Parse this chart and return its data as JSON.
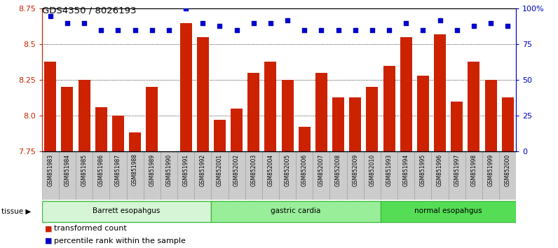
{
  "title": "GDS4350 / 8026193",
  "samples": [
    "GSM851983",
    "GSM851984",
    "GSM851985",
    "GSM851986",
    "GSM851987",
    "GSM851988",
    "GSM851989",
    "GSM851990",
    "GSM851991",
    "GSM851992",
    "GSM852001",
    "GSM852002",
    "GSM852003",
    "GSM852004",
    "GSM852005",
    "GSM852006",
    "GSM852007",
    "GSM852008",
    "GSM852009",
    "GSM852010",
    "GSM851993",
    "GSM851994",
    "GSM851995",
    "GSM851996",
    "GSM851997",
    "GSM851998",
    "GSM851999",
    "GSM852000"
  ],
  "bar_values": [
    8.38,
    8.2,
    8.25,
    8.06,
    8.0,
    7.88,
    8.2,
    7.75,
    8.65,
    8.55,
    7.97,
    8.05,
    8.3,
    8.38,
    8.25,
    7.92,
    8.3,
    8.13,
    8.13,
    8.2,
    8.35,
    8.55,
    8.28,
    8.57,
    8.1,
    8.38,
    8.25,
    8.13
  ],
  "percentile_values": [
    95,
    90,
    90,
    85,
    85,
    85,
    85,
    85,
    100,
    90,
    88,
    85,
    90,
    90,
    92,
    85,
    85,
    85,
    85,
    85,
    85,
    90,
    85,
    92,
    85,
    88,
    90,
    88
  ],
  "groups": [
    {
      "label": "Barrett esopahgus",
      "start": 0,
      "end": 9,
      "color": "#d6f5d6",
      "border": "#44bb44"
    },
    {
      "label": "gastric cardia",
      "start": 10,
      "end": 19,
      "color": "#99ee99",
      "border": "#44bb44"
    },
    {
      "label": "normal esopahgus",
      "start": 20,
      "end": 27,
      "color": "#55dd55",
      "border": "#44bb44"
    }
  ],
  "bar_color": "#cc2200",
  "dot_color": "#0000cc",
  "ylim_left": [
    7.75,
    8.75
  ],
  "ylim_right": [
    0,
    100
  ],
  "yticks_left": [
    7.75,
    8.0,
    8.25,
    8.5,
    8.75
  ],
  "yticks_right": [
    0,
    25,
    50,
    75,
    100
  ],
  "ytick_labels_right": [
    "0",
    "25",
    "50",
    "75",
    "100%"
  ],
  "grid_values": [
    8.0,
    8.25,
    8.5
  ],
  "tick_cell_color": "#cccccc",
  "tick_cell_border": "#999999"
}
